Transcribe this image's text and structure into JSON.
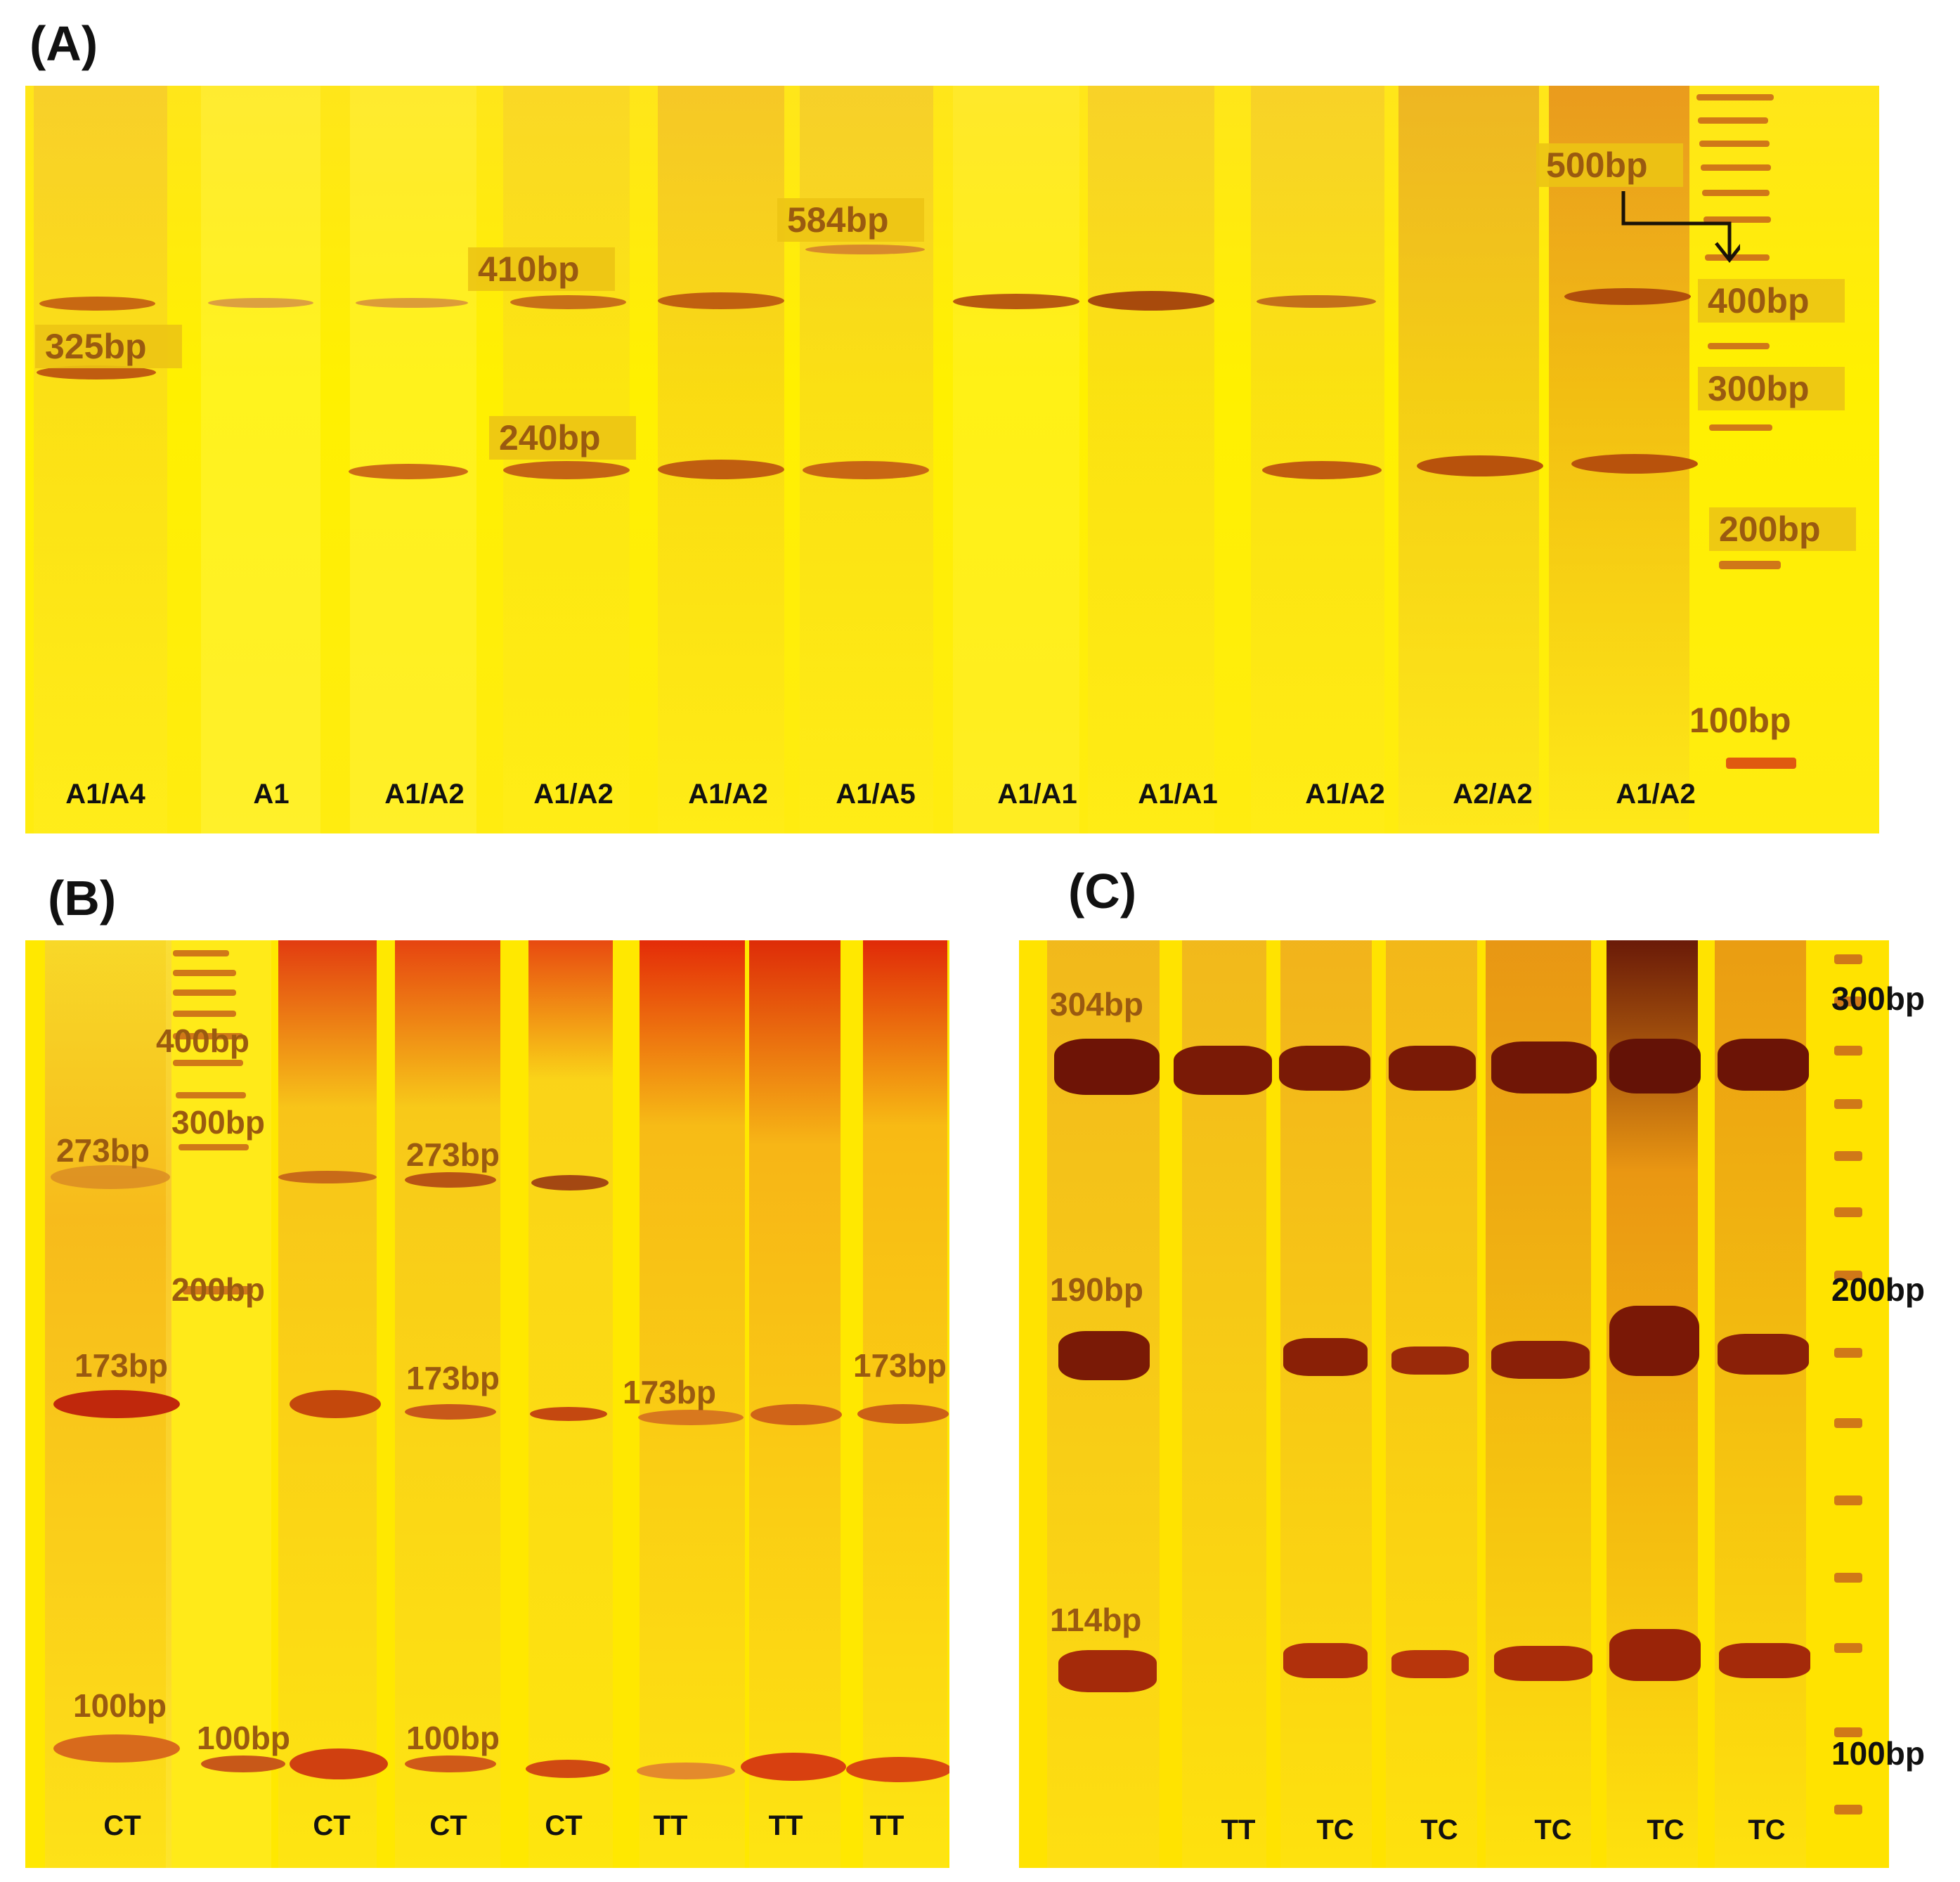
{
  "panels": {
    "a": {
      "letter": "(A)",
      "lanes": [
        "A1/A4",
        "A1",
        "A1/A2",
        "A1/A2",
        "A1/A2",
        "A1/A5",
        "A1/A1",
        "A1/A1",
        "A1/A2",
        "A2/A2",
        "A1/A2"
      ],
      "bands": {
        "bp325": "325bp",
        "bp410": "410bp",
        "bp584": "584bp",
        "bp240": "240bp",
        "bp500": "500bp"
      },
      "ladder": [
        "400bp",
        "300bp",
        "200bp",
        "100bp"
      ]
    },
    "b": {
      "letter": "(B)",
      "lanes": [
        "CT",
        "CT",
        "CT",
        "CT",
        "TT",
        "TT",
        "TT"
      ],
      "bands": {
        "lane1_273": "273bp",
        "lane1_173": "173bp",
        "lane1_100": "100bp",
        "ladder_400": "400bp",
        "ladder_300": "300bp",
        "ladder_200": "200bp",
        "ladder_100": "100bp",
        "lane4_273": "273bp",
        "lane4_173": "173bp",
        "lane4_100": "100bp",
        "lane6_173": "173bp",
        "lane8_173": "173bp"
      }
    },
    "c": {
      "letter": "(C)",
      "lanes": [
        "TT",
        "TC",
        "TC",
        "TC",
        "TC",
        "TC"
      ],
      "bands": {
        "bp304": "304bp",
        "bp190": "190bp",
        "bp114": "114bp"
      },
      "ladder": [
        "300bp",
        "200bp",
        "100bp"
      ]
    }
  },
  "colors": {
    "gel_background": "#ffe800",
    "band_light": "#d77a1c",
    "band_dark": "#8f1d08",
    "label_text": "#9a5a10"
  }
}
